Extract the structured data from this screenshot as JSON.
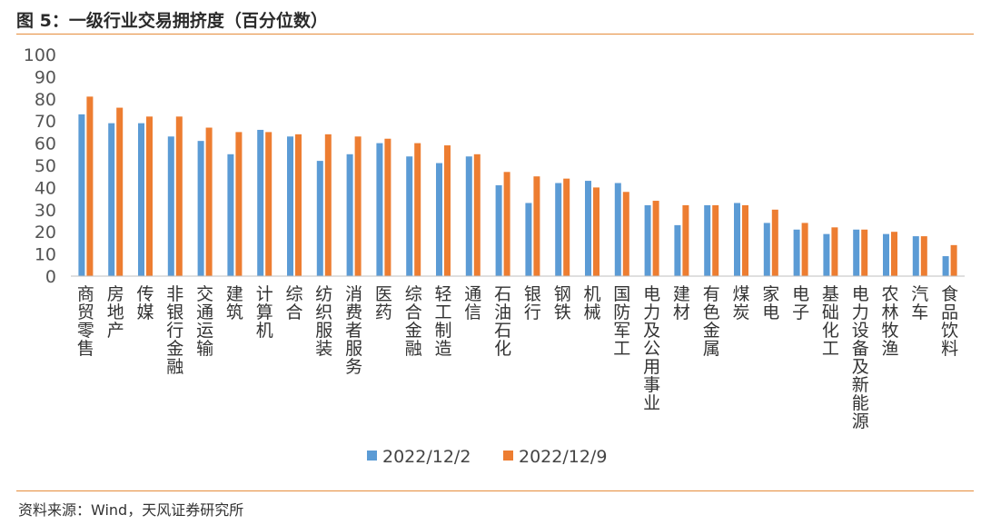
{
  "header": {
    "title": "图 5：一级行业交易拥挤度（百分位数）"
  },
  "footer": {
    "source": "资料来源：Wind，天风证券研究所"
  },
  "colors": {
    "series1": "#5b9bd5",
    "series2": "#ed7d31",
    "accent_rule": "#e58c3b"
  },
  "chart_data": {
    "type": "bar",
    "title": "一级行业交易拥挤度（百分位数）",
    "xlabel": "",
    "ylabel": "",
    "ylim": [
      0,
      100
    ],
    "yticks": [
      0,
      10,
      20,
      30,
      40,
      50,
      60,
      70,
      80,
      90,
      100
    ],
    "grid": false,
    "legend_position": "bottom",
    "categories": [
      "商贸零售",
      "房地产",
      "传媒",
      "非银行金融",
      "交通运输",
      "建筑",
      "计算机",
      "综合",
      "纺织服装",
      "消费者服务",
      "医药",
      "综合金融",
      "轻工制造",
      "通信",
      "石油石化",
      "银行",
      "钢铁",
      "机械",
      "国防军工",
      "电力及公用事业",
      "建材",
      "有色金属",
      "煤炭",
      "家电",
      "电子",
      "基础化工",
      "电力设备及新能源",
      "农林牧渔",
      "汽车",
      "食品饮料"
    ],
    "series": [
      {
        "name": "2022/12/2",
        "values": [
          73,
          69,
          69,
          63,
          61,
          55,
          66,
          63,
          52,
          55,
          60,
          54,
          51,
          54,
          41,
          33,
          42,
          43,
          42,
          32,
          23,
          32,
          33,
          24,
          21,
          19,
          21,
          19,
          18,
          9
        ]
      },
      {
        "name": "2022/12/9",
        "values": [
          81,
          76,
          72,
          72,
          67,
          65,
          65,
          64,
          64,
          63,
          62,
          60,
          59,
          55,
          47,
          45,
          44,
          40,
          38,
          34,
          32,
          32,
          32,
          30,
          24,
          22,
          21,
          20,
          18,
          14
        ]
      }
    ]
  }
}
